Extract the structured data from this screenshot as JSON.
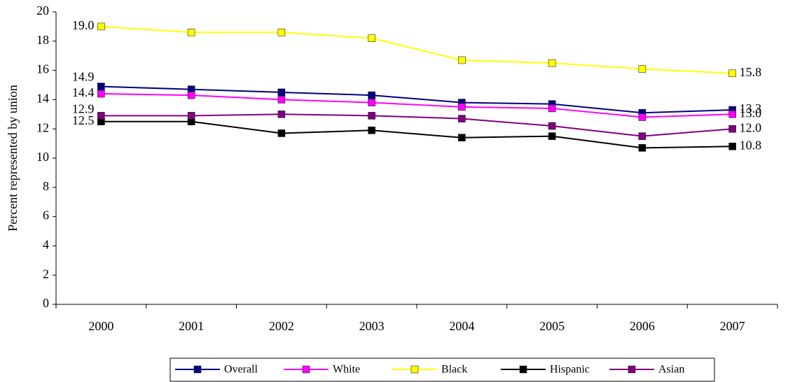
{
  "chart_data": {
    "type": "line",
    "y_label": "Percent represented by union",
    "categories": [
      "2000",
      "2001",
      "2002",
      "2003",
      "2004",
      "2005",
      "2006",
      "2007"
    ],
    "ylim": [
      0,
      20
    ],
    "yticks": [
      0,
      2,
      4,
      6,
      8,
      10,
      12,
      14,
      16,
      18,
      20
    ],
    "grid": false,
    "legend": "bottom",
    "series": [
      {
        "name": "Overall",
        "color": "#000080",
        "values": [
          14.9,
          14.7,
          14.5,
          14.3,
          13.8,
          13.7,
          13.1,
          13.3
        ],
        "value_labels": [
          "14.9",
          null,
          null,
          null,
          null,
          null,
          null,
          "13.3"
        ]
      },
      {
        "name": "White",
        "color": "#ff00ff",
        "values": [
          14.4,
          14.3,
          14.0,
          13.8,
          13.5,
          13.4,
          12.8,
          13.0
        ],
        "value_labels": [
          "14.4",
          null,
          null,
          null,
          null,
          null,
          null,
          "13.0"
        ]
      },
      {
        "name": "Black",
        "color": "#ffff00",
        "values": [
          19.0,
          18.6,
          18.6,
          18.2,
          16.7,
          16.5,
          16.1,
          15.8
        ],
        "value_labels": [
          "19.0",
          null,
          null,
          null,
          null,
          null,
          null,
          "15.8"
        ]
      },
      {
        "name": "Hispanic",
        "color": "#000000",
        "values": [
          12.5,
          12.5,
          11.7,
          11.9,
          11.4,
          11.5,
          10.7,
          10.8
        ],
        "value_labels": [
          "12.5",
          null,
          null,
          null,
          null,
          null,
          null,
          "10.8"
        ]
      },
      {
        "name": "Asian",
        "color": "#800080",
        "values": [
          12.9,
          12.9,
          13.0,
          12.9,
          12.7,
          12.2,
          11.5,
          12.0
        ],
        "value_labels": [
          "12.9",
          null,
          null,
          null,
          null,
          null,
          null,
          "12.0"
        ]
      }
    ]
  }
}
